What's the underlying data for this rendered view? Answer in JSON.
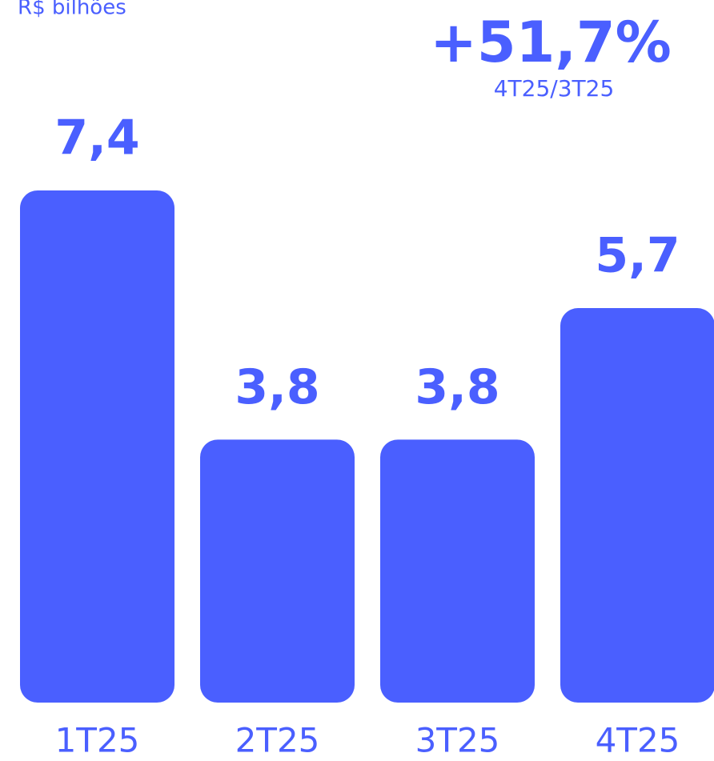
{
  "chart_data": {
    "type": "bar",
    "subtitle": "R$ bilhões",
    "annotation": "+51,7%",
    "annotation_note": "4T25/3T25",
    "categories": [
      "1T25",
      "2T25",
      "3T25",
      "4T25"
    ],
    "values": [
      7.4,
      3.8,
      3.8,
      5.7
    ],
    "value_labels": [
      "7,4",
      "3,8",
      "3,8",
      "5,7"
    ],
    "color": "#4a5fff"
  }
}
